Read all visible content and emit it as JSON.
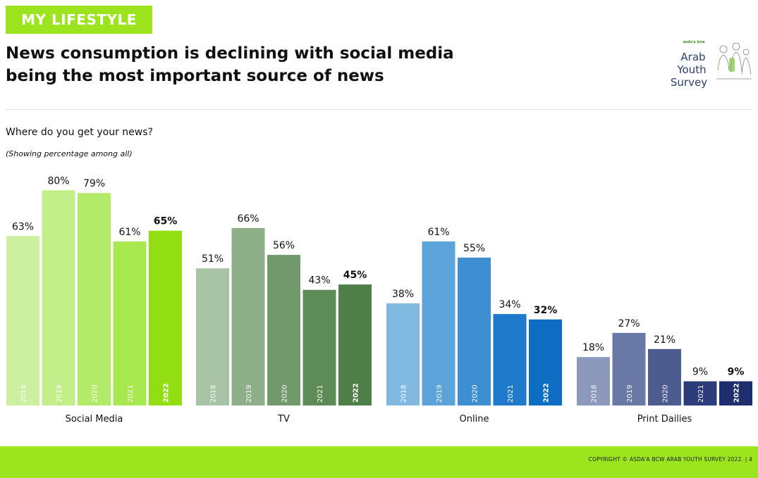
{
  "header": {
    "section_tag": "MY LIFESTYLE",
    "headline_line1": "News consumption is declining with social media",
    "headline_line2": "being the most important source of news"
  },
  "logo": {
    "brand": "asda'a bcw",
    "line1": "Arab",
    "line2": "Youth",
    "line3": "Survey"
  },
  "question": "Where do you get your news?",
  "subnote": "(Showing percentage among all)",
  "footer": {
    "copyright": "COPYRIGHT © ASDA'A BCW ARAB YOUTH SURVEY 2022. | 4"
  },
  "chart_data": {
    "type": "bar",
    "ylim": [
      0,
      100
    ],
    "value_suffix": "%",
    "groups": [
      {
        "name": "Social Media",
        "years": [
          "2018",
          "2019",
          "2020",
          "2021",
          "2022"
        ],
        "values": [
          63,
          80,
          79,
          61,
          65
        ],
        "colors": [
          "#cdf0a0",
          "#c2ee8a",
          "#b2ea6a",
          "#a6e84e",
          "#93de12"
        ]
      },
      {
        "name": "TV",
        "years": [
          "2018",
          "2019",
          "2020",
          "2021",
          "2022"
        ],
        "values": [
          51,
          66,
          56,
          43,
          45
        ],
        "colors": [
          "#a9c3a6",
          "#8eae89",
          "#72996c",
          "#5d8c58",
          "#4e7f48"
        ]
      },
      {
        "name": "Online",
        "years": [
          "2018",
          "2019",
          "2020",
          "2021",
          "2022"
        ],
        "values": [
          38,
          61,
          55,
          34,
          32
        ],
        "colors": [
          "#82b9e1",
          "#5ba4da",
          "#3e8fd1",
          "#1f7acb",
          "#0d6dc2"
        ]
      },
      {
        "name": "Print Dailies",
        "years": [
          "2018",
          "2019",
          "2020",
          "2021",
          "2022"
        ],
        "values": [
          18,
          27,
          21,
          9,
          9
        ],
        "colors": [
          "#8c98bc",
          "#6a78a6",
          "#4d5c8f",
          "#2c3d7b",
          "#1c2e6e"
        ]
      }
    ],
    "highlight_year": "2022",
    "legend": "none",
    "grid": false
  }
}
